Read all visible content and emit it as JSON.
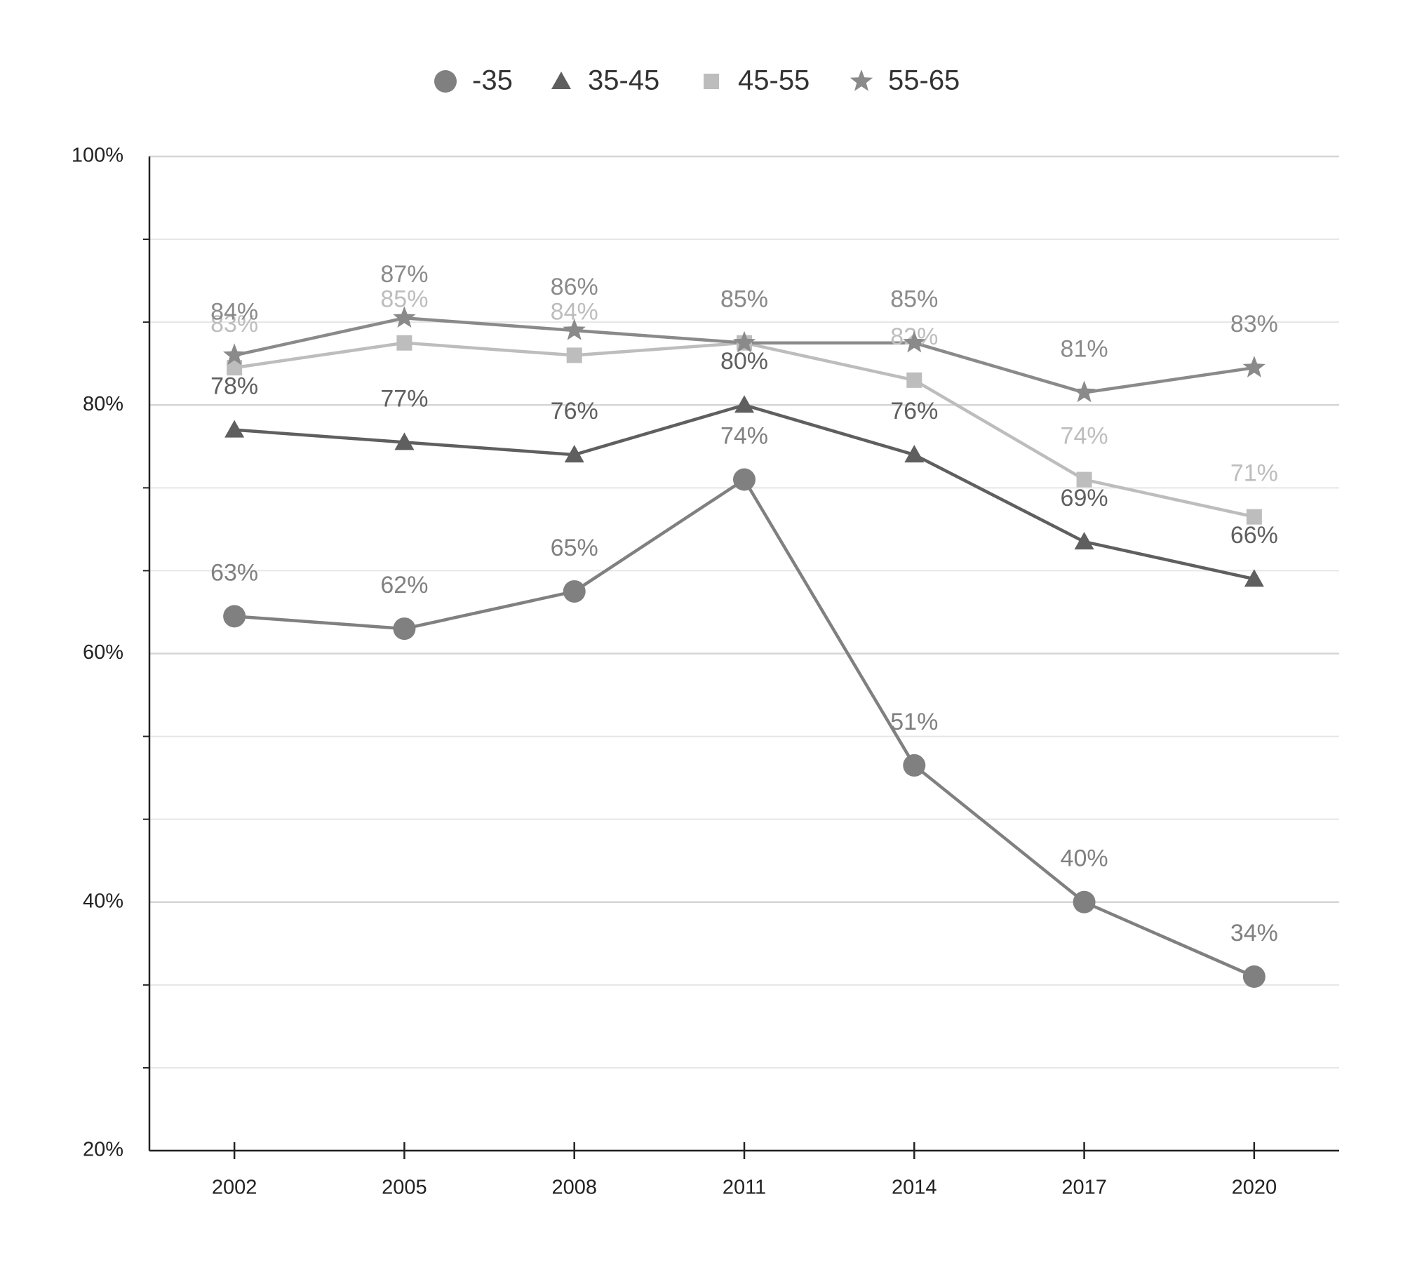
{
  "chart_data": {
    "type": "line",
    "categories": [
      "2002",
      "2005",
      "2008",
      "2011",
      "2014",
      "2017",
      "2020"
    ],
    "series": [
      {
        "name": "-35",
        "color": "#808080",
        "marker": "circle",
        "values": [
          63,
          62,
          65,
          74,
          51,
          40,
          34
        ],
        "value_labels": [
          "63%",
          "62%",
          "65%",
          "74%",
          "51%",
          "40%",
          "34%"
        ]
      },
      {
        "name": "35-45",
        "color": "#5f5f5f",
        "marker": "triangle",
        "values": [
          78,
          77,
          76,
          80,
          76,
          69,
          66
        ],
        "value_labels": [
          "78%",
          "77%",
          "76%",
          "80%",
          "76%",
          "69%",
          "66%"
        ]
      },
      {
        "name": "45-55",
        "color": "#bdbdbd",
        "marker": "square",
        "values": [
          83,
          85,
          84,
          85,
          82,
          74,
          71
        ],
        "value_labels": [
          "83%",
          "85%",
          "84%",
          "85%",
          "82%",
          "74%",
          "71%"
        ]
      },
      {
        "name": "55-65",
        "color": "#8a8a8a",
        "marker": "star",
        "values": [
          84,
          87,
          86,
          85,
          85,
          81,
          83
        ],
        "value_labels": [
          "84%",
          "87%",
          "86%",
          "85%",
          "85%",
          "81%",
          "83%"
        ]
      }
    ],
    "ylim": [
      20,
      100
    ],
    "yticks": [
      {
        "value": 20,
        "label": "20%"
      },
      {
        "value": 40,
        "label": "40%"
      },
      {
        "value": 60,
        "label": "60%"
      },
      {
        "value": 80,
        "label": "80%"
      },
      {
        "value": 100,
        "label": "100%"
      }
    ],
    "yminor_divisions": 3,
    "grid": true,
    "legend": "top"
  }
}
